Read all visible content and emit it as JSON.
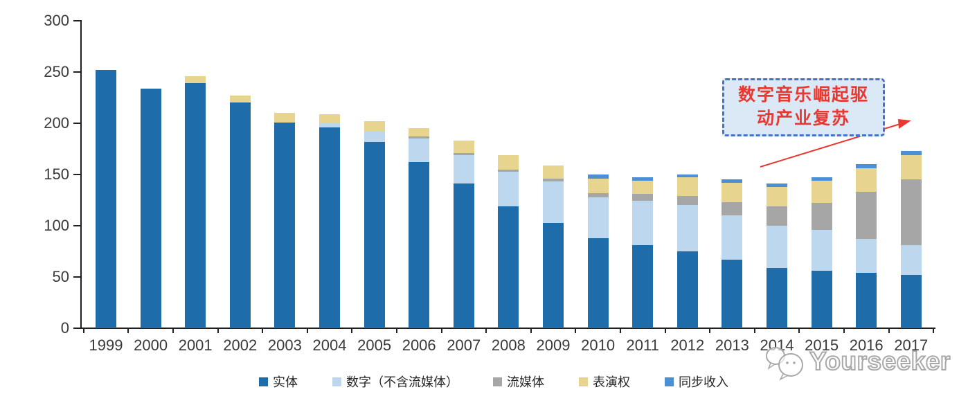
{
  "chart_data": {
    "type": "bar",
    "stacked": true,
    "title": "",
    "xlabel": "",
    "ylabel": "",
    "ylim": [
      0,
      300
    ],
    "yticks": [
      0,
      50,
      100,
      150,
      200,
      250,
      300
    ],
    "grid": false,
    "legend_position": "bottom",
    "categories": [
      "1999",
      "2000",
      "2001",
      "2002",
      "2003",
      "2004",
      "2005",
      "2006",
      "2007",
      "2008",
      "2009",
      "2010",
      "2011",
      "2012",
      "2013",
      "2014",
      "2015",
      "2016",
      "2017"
    ],
    "series": [
      {
        "name": "实体",
        "key": "physical",
        "color": "#1F6CAB",
        "values": [
          252,
          234,
          239,
          220,
          201,
          196,
          182,
          162,
          141,
          119,
          103,
          88,
          81,
          75,
          67,
          59,
          56,
          54,
          52
        ]
      },
      {
        "name": "数字（不含流媒体）",
        "key": "digital-excl-streaming",
        "color": "#BDD7EE",
        "values": [
          0,
          0,
          0,
          0,
          0,
          4,
          10,
          23,
          28,
          34,
          40,
          40,
          43,
          45,
          43,
          41,
          40,
          33,
          29
        ]
      },
      {
        "name": "流媒体",
        "key": "streaming",
        "color": "#A6A6A6",
        "values": [
          0,
          0,
          0,
          0,
          0,
          0,
          0,
          2,
          2,
          2,
          3,
          4,
          7,
          9,
          13,
          19,
          26,
          46,
          64
        ]
      },
      {
        "name": "表演权",
        "key": "performance-rights",
        "color": "#E7D48E",
        "values": [
          0,
          0,
          7,
          7,
          9,
          9,
          10,
          8,
          12,
          14,
          13,
          14,
          13,
          18,
          19,
          19,
          22,
          23,
          24
        ]
      },
      {
        "name": "同步收入",
        "key": "sync-revenue",
        "color": "#4B90D5",
        "values": [
          0,
          0,
          0,
          0,
          0,
          0,
          0,
          0,
          0,
          0,
          0,
          4,
          3,
          3,
          3,
          3,
          3,
          4,
          4
        ]
      }
    ]
  },
  "annotation": {
    "line1": "数字音乐崛起驱",
    "line2": "动产业复苏"
  },
  "watermark": {
    "text": "Yourseeker"
  },
  "colors": {
    "physical": "#1F6CAB",
    "digital_excl_streaming": "#BDD7EE",
    "streaming": "#A6A6A6",
    "performance_rights": "#E7D48E",
    "sync_revenue": "#4B90D5",
    "annotation_border": "#4472C4",
    "annotation_fill": "#DBE8F6",
    "annotation_text": "#E8382F",
    "arrow": "#E8382F",
    "axis": "#1F1F1F",
    "axis_label": "#3A3A3A",
    "watermark_outline": "#A8A8A8"
  }
}
